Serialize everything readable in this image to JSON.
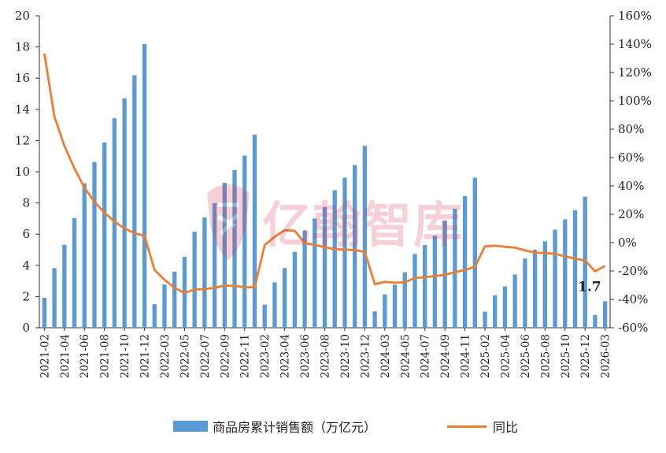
{
  "chart_data": {
    "type": "bar+line",
    "categories": [
      "2021-02",
      "2021-03",
      "2021-04",
      "2021-05",
      "2021-06",
      "2021-07",
      "2021-08",
      "2021-09",
      "2021-10",
      "2021-11",
      "2021-12",
      "2022-02",
      "2022-03",
      "2022-04",
      "2022-05",
      "2022-06",
      "2022-07",
      "2022-08",
      "2022-09",
      "2022-10",
      "2022-11",
      "2022-12",
      "2023-02",
      "2023-03",
      "2023-04",
      "2023-05",
      "2023-06",
      "2023-07",
      "2023-08",
      "2023-09",
      "2023-10",
      "2023-11",
      "2023-12",
      "2024-02",
      "2024-03",
      "2024-04",
      "2024-05",
      "2024-06",
      "2024-07",
      "2024-08",
      "2024-09",
      "2024-10",
      "2024-11",
      "2024-12",
      "2025-02",
      "2025-03",
      "2025-04",
      "2025-05",
      "2025-06",
      "2025-07",
      "2025-08",
      "2025-09",
      "2025-10",
      "2025-11",
      "2025-12",
      "2026-02",
      "2026-03"
    ],
    "x_tick_labels": [
      "2021-02",
      "2021-04",
      "2021-06",
      "2021-08",
      "2021-10",
      "2021-12",
      "2022-03",
      "2022-05",
      "2022-07",
      "2022-09",
      "2022-11",
      "2023-02",
      "2023-04",
      "2023-06",
      "2023-08",
      "2023-10",
      "2023-12",
      "2024-03",
      "2024-05",
      "2024-07",
      "2024-09",
      "2024-11",
      "2025-02",
      "2025-04",
      "2025-06",
      "2025-08",
      "2025-10",
      "2025-12",
      "2026-03"
    ],
    "series": [
      {
        "name": "商品房累计销售额（万亿元）",
        "axis": "left",
        "kind": "bar",
        "color": "#5b9bd5",
        "values": [
          1.92,
          3.82,
          5.32,
          7.03,
          9.26,
          10.62,
          11.87,
          13.43,
          14.71,
          16.19,
          18.19,
          1.51,
          2.77,
          3.6,
          4.55,
          6.15,
          7.07,
          7.99,
          9.29,
          10.11,
          11.04,
          12.38,
          1.48,
          2.91,
          3.83,
          4.87,
          6.23,
          7.0,
          7.74,
          8.81,
          9.62,
          10.43,
          11.66,
          1.05,
          2.14,
          2.76,
          3.56,
          4.73,
          5.3,
          5.9,
          6.86,
          7.63,
          8.44,
          9.62,
          1.03,
          2.08,
          2.65,
          3.41,
          4.44,
          5.0,
          5.54,
          6.29,
          6.95,
          7.54,
          8.4,
          0.82,
          1.7
        ]
      },
      {
        "name": "同比",
        "axis": "right",
        "kind": "line",
        "color": "#ed7d31",
        "values": [
          133.4,
          88.9,
          68.2,
          52.4,
          38.8,
          28.8,
          21.1,
          14.9,
          10.0,
          6.8,
          4.8,
          -19.3,
          -26.2,
          -31.8,
          -35.4,
          -33.1,
          -32.8,
          -31.9,
          -30.3,
          -30.5,
          -31.4,
          -31.5,
          -1.8,
          4.1,
          8.8,
          8.4,
          -0.3,
          -1.5,
          -3.3,
          -4.6,
          -4.9,
          -5.2,
          -6.5,
          -29.3,
          -27.6,
          -28.3,
          -27.9,
          -25.0,
          -24.3,
          -23.6,
          -22.7,
          -20.9,
          -19.2,
          -17.1,
          -2.6,
          -2.1,
          -2.9,
          -3.5,
          -5.5,
          -7.1,
          -7.3,
          -7.9,
          -9.6,
          -11.2,
          -12.6,
          -20.2,
          -16.4
        ]
      }
    ],
    "y_left": {
      "min": 0,
      "max": 20,
      "ticks": [
        0,
        2,
        4,
        6,
        8,
        10,
        12,
        14,
        16,
        18,
        20
      ]
    },
    "y_right": {
      "min": -60,
      "max": 160,
      "ticks": [
        "-60%",
        "-40%",
        "-20%",
        "0%",
        "20%",
        "40%",
        "60%",
        "80%",
        "100%",
        "120%",
        "140%",
        "160%"
      ]
    },
    "annotation": "1.7",
    "legend": {
      "placement": "bottom",
      "bar_label": "商品房累计销售额（万亿元）",
      "line_label": "同比"
    },
    "grid": false
  },
  "watermark": {
    "text": "亿翰智库",
    "color": "#d9304f"
  }
}
